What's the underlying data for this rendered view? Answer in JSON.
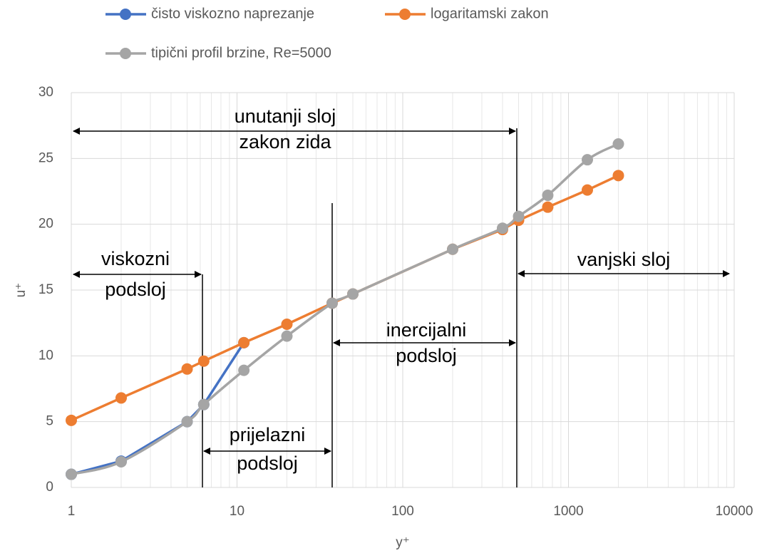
{
  "chart_data": {
    "type": "line",
    "x_label": "y⁺",
    "y_label": "u⁺",
    "log_x": true,
    "grid": true,
    "xlim": [
      1,
      10000
    ],
    "xticks": [
      1,
      10,
      100,
      1000,
      10000
    ],
    "ylim": [
      0,
      30
    ],
    "yticks": [
      0,
      5,
      10,
      15,
      20,
      25,
      30
    ],
    "series": [
      {
        "name": "čisto viskozno naprezanje",
        "color": "#4472c4",
        "x": [
          1,
          2,
          5,
          6.3,
          11
        ],
        "values": [
          1,
          2,
          5,
          6.3,
          11
        ]
      },
      {
        "name": "logaritamski zakon",
        "color": "#ed7d31",
        "x": [
          1,
          2,
          5,
          6.3,
          11,
          20,
          37.5,
          50,
          200,
          400,
          500,
          750,
          1300,
          2000
        ],
        "values": [
          5.1,
          6.8,
          9.0,
          9.6,
          11.0,
          12.4,
          14.0,
          14.7,
          18.1,
          19.6,
          20.3,
          21.3,
          22.6,
          23.7
        ]
      },
      {
        "name": "tipični profil brzine, Re=5000",
        "color": "#a5a5a5",
        "smooth": true,
        "x": [
          1,
          2,
          5,
          6.3,
          11,
          20,
          37.5,
          50,
          200,
          400,
          500,
          750,
          1300,
          2000
        ],
        "values": [
          1.0,
          1.95,
          5.0,
          6.3,
          8.9,
          11.5,
          14.0,
          14.7,
          18.1,
          19.7,
          20.6,
          22.2,
          24.9,
          26.1
        ]
      }
    ],
    "annotations": [
      {
        "lines": [
          "unutanji sloj",
          "zakon zida"
        ]
      },
      {
        "lines": [
          "viskozni",
          "podsloj"
        ]
      },
      {
        "lines": [
          "vanjski sloj"
        ]
      },
      {
        "lines": [
          "inercijalni",
          "podsloj"
        ]
      },
      {
        "lines": [
          "prijelazni",
          "podsloj"
        ]
      }
    ]
  }
}
